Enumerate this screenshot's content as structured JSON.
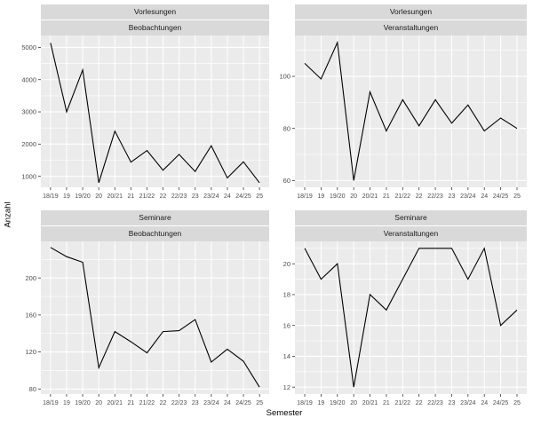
{
  "figure": {
    "colors": {
      "background": "#FFFFFF",
      "panel_bg": "#EBEBEB",
      "strip_bg": "#D9D9D9",
      "grid": "#FFFFFF",
      "line": "#000000",
      "tick_label": "#4D4D4D",
      "tick_mark": "#333333",
      "axis_title": "#000000"
    }
  },
  "chart_data": {
    "type": "line",
    "title": "",
    "xlabel": "Semester",
    "ylabel": "Anzahl",
    "grid": true,
    "legend": "none",
    "facet_rows": [
      "Vorlesungen",
      "Seminare"
    ],
    "facet_cols": [
      "Beobachtungen",
      "Veranstaltungen"
    ],
    "categories": [
      "18/19",
      "19",
      "19/20",
      "20",
      "20/21",
      "21",
      "21/22",
      "22",
      "22/23",
      "23",
      "23/24",
      "24",
      "24/25",
      "25"
    ],
    "facets": [
      {
        "strip_row1": "Vorlesungen",
        "strip_row2": "Beobachtungen",
        "y_ticks": [
          1000,
          2000,
          3000,
          4000,
          5000
        ],
        "ylim": [
          660,
          5370
        ],
        "values": [
          5140,
          3000,
          4300,
          800,
          2400,
          1440,
          1800,
          1190,
          1680,
          1150,
          1950,
          950,
          1450,
          800
        ]
      },
      {
        "strip_row1": "Vorlesungen",
        "strip_row2": "Veranstaltungen",
        "y_ticks": [
          60,
          80,
          100
        ],
        "ylim": [
          57.4,
          115.7
        ],
        "values": [
          105,
          99,
          113,
          60,
          94,
          79,
          91,
          81,
          91,
          82,
          89,
          79,
          84,
          80
        ]
      },
      {
        "strip_row1": "Seminare",
        "strip_row2": "Beobachtungen",
        "y_ticks": [
          80,
          120,
          160,
          200
        ],
        "ylim": [
          74.5,
          239.5
        ],
        "values": [
          233,
          223,
          217,
          103,
          142,
          131,
          119,
          142,
          143,
          155,
          109,
          123,
          110,
          82
        ]
      },
      {
        "strip_row1": "Seminare",
        "strip_row2": "Veranstaltungen",
        "y_ticks": [
          12,
          14,
          16,
          18,
          20
        ],
        "ylim": [
          11.55,
          21.45
        ],
        "values": [
          21,
          19,
          20,
          12,
          18,
          17,
          19,
          21,
          21,
          21,
          19,
          21,
          16,
          17
        ]
      }
    ]
  }
}
